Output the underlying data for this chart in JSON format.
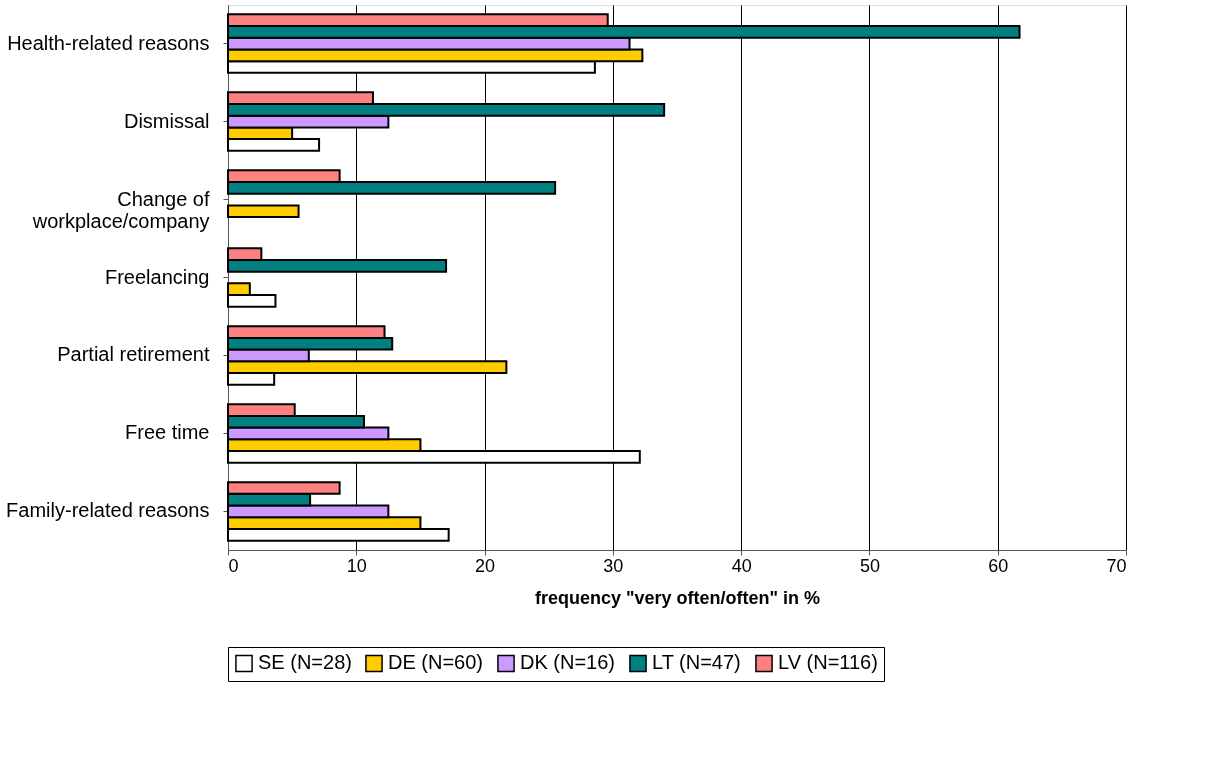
{
  "chart_data": {
    "type": "bar",
    "orientation": "horizontal",
    "xlabel": "frequency \"very often/often\" in %",
    "categories": [
      "Health-related reasons",
      "Dismissal",
      "Change of workplace/company",
      "Freelancing",
      "Partial retirement",
      "Free time",
      "Family-related reasons"
    ],
    "series": [
      {
        "name": "SE (N=28)",
        "color": "#ffffff",
        "values": [
          28.6,
          7.1,
          null,
          3.7,
          3.6,
          32.1,
          17.2
        ]
      },
      {
        "name": "DE (N=60)",
        "color": "#ffcc00",
        "values": [
          32.3,
          5.0,
          5.5,
          1.7,
          21.7,
          15.0,
          15.0
        ]
      },
      {
        "name": "DK (N=16)",
        "color": "#cc99ff",
        "values": [
          31.3,
          12.5,
          null,
          null,
          6.3,
          12.5,
          12.5
        ]
      },
      {
        "name": "LT (N=47)",
        "color": "#008080",
        "values": [
          61.7,
          34.0,
          25.5,
          17.0,
          12.8,
          10.6,
          6.4
        ]
      },
      {
        "name": "LV (N=116)",
        "color": "#ff8080",
        "values": [
          29.6,
          11.3,
          8.7,
          2.6,
          12.2,
          5.2,
          8.7
        ]
      }
    ],
    "xlim": [
      0,
      70
    ],
    "xticks": [
      0,
      10,
      20,
      30,
      40,
      50,
      60,
      70
    ],
    "grid": "x",
    "legend": "bottom"
  }
}
